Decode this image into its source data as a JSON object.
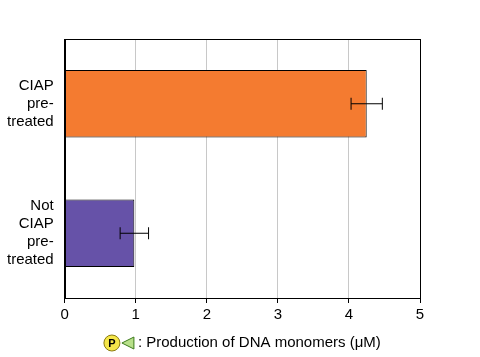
{
  "chart_data": {
    "type": "bar",
    "orientation": "horizontal",
    "categories": [
      "CIAP pre-treated",
      "Not CIAP pre-treated"
    ],
    "values": [
      4.25,
      0.98
    ],
    "errors": [
      0.22,
      0.2
    ],
    "colors": [
      "#f47b30",
      "#6652a8"
    ],
    "x_label": ": Production of DNA monomers (μM)",
    "annotations": [
      "P"
    ],
    "xlim": [
      0,
      5
    ],
    "xticks": [
      0,
      1,
      2,
      3,
      4,
      5
    ],
    "grid": true
  }
}
